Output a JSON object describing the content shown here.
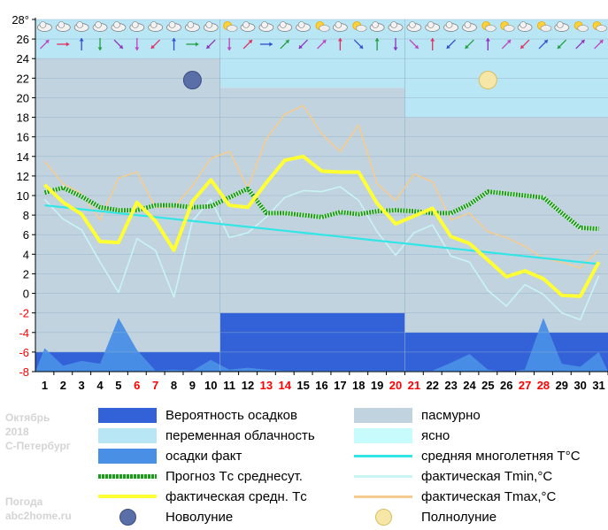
{
  "title_block": {
    "month": "Октябрь",
    "year": "2018",
    "city": "С-Петербург"
  },
  "site": {
    "line1": "Погода",
    "line2": "abc2home.ru"
  },
  "colors": {
    "overcast": "#c2d3e0",
    "variable": "#b9e6f5",
    "clear": "#c8fbfb",
    "precip_prob": "#3361d8",
    "precip_fact": "#4a8fe6",
    "forecast": "#1f9a1f",
    "fact_avg": "#ffff33",
    "avg_long": "#33e6e6",
    "tmin": "#c8f4f4",
    "tmax": "#f4cc90"
  },
  "legend": [
    {
      "id": "precip-prob",
      "label": "Вероятность осадков"
    },
    {
      "id": "overcast",
      "label": "пасмурно"
    },
    {
      "id": "variable",
      "label": "переменная облачность"
    },
    {
      "id": "clear",
      "label": "ясно"
    },
    {
      "id": "precip-fact",
      "label": "осадки факт"
    },
    {
      "id": "avg-long",
      "label": "средняя многолетняя T°C"
    },
    {
      "id": "forecast",
      "label": "Прогноз Tс среднесут."
    },
    {
      "id": "tmin",
      "label": "фактическая Tmin,°C"
    },
    {
      "id": "fact-avg",
      "label": "фактическая средн. Tс"
    },
    {
      "id": "tmax",
      "label": "фактическая Tmax,°C"
    },
    {
      "id": "new-moon",
      "label": "Новолуние"
    },
    {
      "id": "full-moon",
      "label": "Полнолуние"
    }
  ],
  "chart_data": {
    "type": "line",
    "title": "",
    "x": [
      1,
      2,
      3,
      4,
      5,
      6,
      7,
      8,
      9,
      10,
      11,
      12,
      13,
      14,
      15,
      16,
      17,
      18,
      19,
      20,
      21,
      22,
      23,
      24,
      25,
      26,
      27,
      28,
      29,
      30,
      31
    ],
    "x_tick_labels": [
      "1",
      "2",
      "3",
      "4",
      "5",
      "6",
      "7",
      "8",
      "9",
      "10",
      "11",
      "12",
      "13",
      "14",
      "15",
      "16",
      "17",
      "18",
      "19",
      "20",
      "21",
      "22",
      "23",
      "24",
      "25",
      "26",
      "27",
      "28",
      "29",
      "30",
      "31"
    ],
    "weekend_days": [
      6,
      7,
      13,
      14,
      20,
      21,
      27,
      28
    ],
    "weekday_color": "#000000",
    "weekend_color": "#ff0000",
    "ylim": [
      -8,
      28
    ],
    "y_ticks": [
      -8,
      -6,
      -4,
      -2,
      0,
      2,
      4,
      6,
      8,
      10,
      12,
      14,
      16,
      18,
      20,
      22,
      24,
      26,
      28
    ],
    "y_tick_labels": [
      "-8",
      "-6",
      "-4",
      "-2",
      "0",
      "2",
      "4",
      "6",
      "8",
      "10",
      "12",
      "14",
      "16",
      "18",
      "20",
      "22",
      "24",
      "26",
      "28°"
    ],
    "y_label_negative_color": "#ff0000",
    "y_label_positive_color": "#000000",
    "series": [
      {
        "key": "tmax",
        "values": [
          13.5,
          11.2,
          10.2,
          7.5,
          11.8,
          12.4,
          8.8,
          8.8,
          11,
          13.8,
          14.5,
          10.8,
          15.8,
          18.3,
          19.2,
          16.3,
          14.5,
          17.2,
          11.2,
          9.5,
          12.2,
          11.4,
          7.5,
          8.2,
          6.3,
          5.7,
          4.8,
          3.6,
          3.2,
          2.6,
          4.4
        ]
      },
      {
        "key": "tmin",
        "values": [
          9.6,
          7.6,
          6.5,
          3.2,
          0.1,
          5.6,
          4.4,
          -0.4,
          7.4,
          9.6,
          5.7,
          6.2,
          7.8,
          9.8,
          10.5,
          10.4,
          10.9,
          9.5,
          6.3,
          3.9,
          6.2,
          7,
          3.8,
          3.2,
          0.3,
          -1.3,
          0.9,
          -0.1,
          -2,
          -2.7,
          1.8
        ]
      },
      {
        "key": "avg_long",
        "values": [
          9,
          8.8,
          8.6,
          8.4,
          8.2,
          8,
          7.8,
          7.6,
          7.4,
          7.2,
          7,
          6.8,
          6.6,
          6.4,
          6.2,
          6,
          5.8,
          5.6,
          5.4,
          5.2,
          5,
          4.8,
          4.6,
          4.4,
          4.2,
          4,
          3.8,
          3.6,
          3.4,
          3.2,
          3
        ]
      },
      {
        "key": "forecast",
        "values": [
          10.3,
          10.8,
          9.9,
          8.8,
          8.5,
          8.5,
          9,
          9,
          8.8,
          8.9,
          9.8,
          10.7,
          8.2,
          8.2,
          8,
          7.8,
          8.3,
          8.1,
          8.4,
          8.5,
          8.4,
          8.2,
          8.2,
          9.1,
          10.4,
          10.2,
          10,
          9.8,
          8.2,
          6.7,
          6.6
        ]
      },
      {
        "key": "fact_avg",
        "values": [
          11.1,
          9.3,
          8.1,
          5.3,
          5.2,
          9.3,
          7.4,
          4.4,
          9.4,
          11.6,
          9,
          8.8,
          11.3,
          13.6,
          14,
          12.5,
          12.4,
          12.4,
          9.2,
          7.1,
          7.9,
          8.7,
          5.8,
          5.1,
          3.4,
          1.7,
          2.3,
          1.5,
          -0.2,
          -0.3,
          3.2
        ]
      }
    ],
    "precip_fact": [
      -5.6,
      -7.4,
      -6.9,
      -7.2,
      -2.5,
      -5.8,
      -7.9,
      -7.8,
      -7.9,
      -6.8,
      -7.8,
      -7.6,
      -7.8,
      -7.9,
      -7.9,
      -7.9,
      -7.9,
      -7.9,
      -7.9,
      -7.9,
      -7.9,
      -7.9,
      -7.1,
      -6.2,
      -7.8,
      -8,
      -7.8,
      -2.5,
      -7.2,
      -7.5,
      -6
    ],
    "precip_prob": [
      -6,
      -6,
      -6,
      -6,
      -6,
      -6,
      -6,
      -6,
      -6,
      -6,
      -2,
      -2,
      -2,
      -2,
      -2,
      -2,
      -2,
      -2,
      -2,
      -2,
      -4,
      -4,
      -4,
      -4,
      -4,
      -4,
      -4,
      -4,
      -4,
      -4,
      -4
    ],
    "cloud_bands": [
      {
        "from": 1,
        "to": 10,
        "type": "overcast",
        "below": 24,
        "above": "variable"
      },
      {
        "from": 11,
        "to": 20,
        "type": "overcast",
        "below": 21,
        "above": "variable"
      },
      {
        "from": 21,
        "to": 31,
        "type": "overcast",
        "below": 18,
        "above": "variable"
      }
    ],
    "moons": [
      {
        "type": "new",
        "day": 9,
        "value": 21.8
      },
      {
        "type": "full",
        "day": 25,
        "value": 21.8
      }
    ],
    "weather_icons": [
      "cloudy",
      "cloudy",
      "cloudy",
      "cloudy",
      "cloudy",
      "cloudy",
      "cloudy",
      "cloudy",
      "cloudy",
      "cloudy",
      "sun",
      "cloudy",
      "cloudy",
      "cloudy",
      "cloudy",
      "sun",
      "cloudy",
      "sun",
      "cloudy",
      "cloudy",
      "cloudy",
      "cloudy",
      "cloudy",
      "cloudy",
      "sun",
      "sun",
      "cloudy",
      "sun",
      "cloudy",
      "sun",
      "sun"
    ],
    "wind_arrows": [
      "ne",
      "e",
      "n",
      "s",
      "se",
      "s",
      "sw",
      "n",
      "e",
      "sw",
      "s",
      "ne",
      "e",
      "ne",
      "sw",
      "ne",
      "n",
      "se",
      "n",
      "s",
      "se",
      "n",
      "sw",
      "sw",
      "n",
      "ne",
      "sw",
      "ne",
      "sw",
      "ne",
      "ne"
    ]
  }
}
